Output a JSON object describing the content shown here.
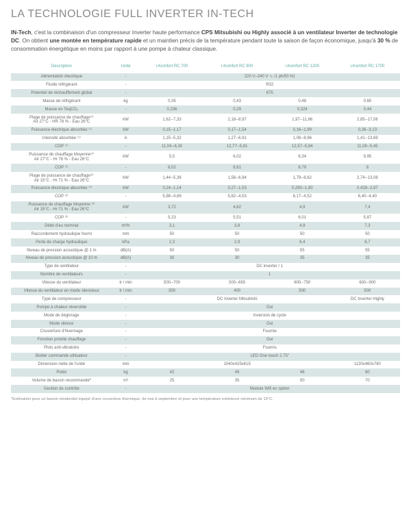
{
  "title": "LA TECHNOLOGIE FULL INVERTER IN-TECH",
  "intro_html": "<b>IN-Tech</b>, c'est la combinaison d'un compresseur Inverter haute performance <b>CPS Mitsubishi ou Highly associé à un ventilateur Inverter de technologie DC</b>. On obtient <b>une montée en température rapide</b> et un maintien précis de la température pendant toute la saison de façon économique, jusqu'à <b>30 %</b> de consommation énergétique en moins par rapport à une pompe à chaleur classique.",
  "columns": [
    "Description",
    "Unité",
    "i-Komfort RC 700",
    "i-Komfort RC 900",
    "i-Komfort RC 1200",
    "i-Komfort RC 1700"
  ],
  "rows": [
    {
      "desc": "Alimentation électrique",
      "unit": "-",
      "vals": [
        "",
        "220 V–240 V ∿ /1 ph/50 Hz",
        "",
        ""
      ],
      "span": true
    },
    {
      "desc": "Fluide réfrigérant",
      "unit": "-",
      "vals": [
        "",
        "R32",
        "",
        ""
      ],
      "span": true
    },
    {
      "desc": "Potentiel de réchauffement global",
      "unit": "-",
      "vals": [
        "",
        "675",
        "",
        ""
      ],
      "span": true
    },
    {
      "desc": "Masse de réfrigérant",
      "unit": "kg",
      "vals": [
        "0,35",
        "0,43",
        "0,48",
        "0,65"
      ]
    },
    {
      "desc": "Masse en TeqCO₂",
      "unit": "-",
      "vals": [
        "0,236",
        "0,29",
        "0,324",
        "0,44"
      ]
    },
    {
      "desc": "Plage de puissance de chauffage⁽¹⁾\nAir 27°C - HR 78 % - Eau 26°C",
      "unit": "kW",
      "vals": [
        "1,62--7,33",
        "2,18--8,97",
        "1,97--11,66",
        "2,85--17,06"
      ]
    },
    {
      "desc": "Puissance électrique absorbée ⁽¹⁾",
      "unit": "kW",
      "vals": [
        "0,15--1,17",
        "0,17--1,54",
        "0,16--1,99",
        "0,26--3,13"
      ]
    },
    {
      "desc": "Intensité absorbée ⁽¹⁾",
      "unit": "A",
      "vals": [
        "1,15--5,32",
        "1,27--6,91",
        "1,08--8,96",
        "1,41--13,69"
      ]
    },
    {
      "desc": "COP ⁽¹⁾",
      "unit": "-",
      "vals": [
        "11,04--6,30",
        "12,77--5,81",
        "12,57--5,84",
        "11,08--5,45"
      ]
    },
    {
      "desc": "Puissance de chauffage Moyenne⁽¹⁾\nAir 27°C - Hr 78 % - Eau 26°C",
      "unit": "kW",
      "vals": [
        "5,5",
        "6,02",
        "6,34",
        "9,95"
      ]
    },
    {
      "desc": "COP ⁽¹⁾",
      "unit": "-",
      "vals": [
        "8,02",
        "8,61",
        "8,79",
        "8"
      ]
    },
    {
      "desc": "Plage de puissance de chauffage⁽²⁾\nAir 15°C - Hr 71 % - Eau 26°C",
      "unit": "kW",
      "vals": [
        "1,44--5,36",
        "1,58--6,94",
        "1,79--8,62",
        "2,74--13,08"
      ]
    },
    {
      "desc": "Puissance électrique absorbée ⁽²⁾",
      "unit": "kW",
      "vals": [
        "0,24--1,14",
        "0,27--1,53",
        "0,290--1,90",
        "0,428--2,97"
      ]
    },
    {
      "desc": "COP ⁽²⁾",
      "unit": "-",
      "vals": [
        "5,98--4,69",
        "5,82--4,53",
        "6,17--4,52",
        "6,40--4,40"
      ]
    },
    {
      "desc": "Puissance de chauffage Moyenne ⁽²⁾\nAir 15°C - Hr 71 % - Eau 26°C",
      "unit": "kW",
      "vals": [
        "3,72",
        "4,62",
        "4,9",
        "7,4"
      ]
    },
    {
      "desc": "COP ⁽²⁾",
      "unit": "-",
      "vals": [
        "5,23",
        "5,51",
        "6,01",
        "5,87"
      ]
    },
    {
      "desc": "Débit d'au nominal",
      "unit": "m³/h",
      "vals": [
        "3,1",
        "3,8",
        "4,9",
        "7,3"
      ]
    },
    {
      "desc": "Raccordement hydraulique fourni",
      "unit": "mm",
      "vals": [
        "50",
        "50",
        "50",
        "50"
      ]
    },
    {
      "desc": "Perte de charge hydraulique",
      "unit": "kPa",
      "vals": [
        "2,3",
        "2,9",
        "6,4",
        "6,7"
      ]
    },
    {
      "desc": "Niveau de pression acoustique @ 1 m",
      "unit": "dB(A)",
      "vals": [
        "50",
        "50",
        "55",
        "55"
      ]
    },
    {
      "desc": "Niveau de pression acoustique @ 10 m",
      "unit": "dB(A)",
      "vals": [
        "30",
        "30",
        "35",
        "35"
      ]
    },
    {
      "desc": "Type de ventilateur",
      "unit": "-",
      "vals": [
        "",
        "DC inverter / 1",
        "",
        ""
      ],
      "span": true
    },
    {
      "desc": "Nombre de ventilateurs",
      "unit": "-",
      "vals": [
        "",
        "1",
        "",
        ""
      ],
      "span": true
    },
    {
      "desc": "Vitesse du ventilateur",
      "unit": "tr / min",
      "vals": [
        "500--700",
        "500--650",
        "600--750",
        "600--900"
      ]
    },
    {
      "desc": "Vitesse du ventilateur en mode silencieux",
      "unit": "tr / min",
      "vals": [
        "300",
        "400",
        "500",
        "500"
      ]
    },
    {
      "desc": "Type de compresseur",
      "unit": "-",
      "vals": [
        "",
        "DC Inverter Mitsubishi",
        "",
        "DC Inverter Highly"
      ],
      "span3": true
    },
    {
      "desc": "Pompe à chaleur réversible",
      "unit": "-",
      "vals": [
        "",
        "Oui",
        "",
        ""
      ],
      "span": true
    },
    {
      "desc": "Mode de dégivrage",
      "unit": "-",
      "vals": [
        "",
        "Inversion de cycle",
        "",
        ""
      ],
      "span": true
    },
    {
      "desc": "Mode silence",
      "unit": "-",
      "vals": [
        "",
        "Oui",
        "",
        ""
      ],
      "span": true
    },
    {
      "desc": "Couverture d'hivernage",
      "unit": "-",
      "vals": [
        "",
        "Fournie",
        "",
        ""
      ],
      "span": true
    },
    {
      "desc": "Fonction priorité chauffage",
      "unit": "-",
      "vals": [
        "",
        "Oui",
        "",
        ""
      ],
      "span": true
    },
    {
      "desc": "Plots anti-vibratoire",
      "unit": "-",
      "vals": [
        "",
        "Fournis",
        "",
        ""
      ],
      "span": true
    },
    {
      "desc": "Boitier commande utilisateur",
      "unit": "-",
      "vals": [
        "",
        "LED One touch 2.75\"",
        "",
        ""
      ],
      "span": true
    },
    {
      "desc": "Dimension nette de l'unité",
      "unit": "mm",
      "vals": [
        "",
        "1040x425x615",
        "",
        "1130x460x780"
      ],
      "span3": true
    },
    {
      "desc": "Poids",
      "unit": "kg",
      "vals": [
        "42",
        "45",
        "46",
        "60"
      ]
    },
    {
      "desc": "Volume de bassin recommandé*",
      "unit": "m³",
      "vals": [
        "25",
        "35",
        "50",
        "70"
      ]
    },
    {
      "desc": "Gestion de contrôle",
      "unit": "-",
      "vals": [
        "",
        "Module Wifi en option",
        "",
        ""
      ],
      "span": true
    }
  ],
  "footnote": "*Estimation pour un bassin résidentiel équipé d'une couverture thermique, de mai à septembre et pour une température extérieure minimum de 15°C.",
  "colors": {
    "heading": "#8a8a8a",
    "th": "#5aa9a3",
    "row_odd": "#d9e5e4",
    "row_even": "#ffffff",
    "text": "#6b6b6b"
  }
}
